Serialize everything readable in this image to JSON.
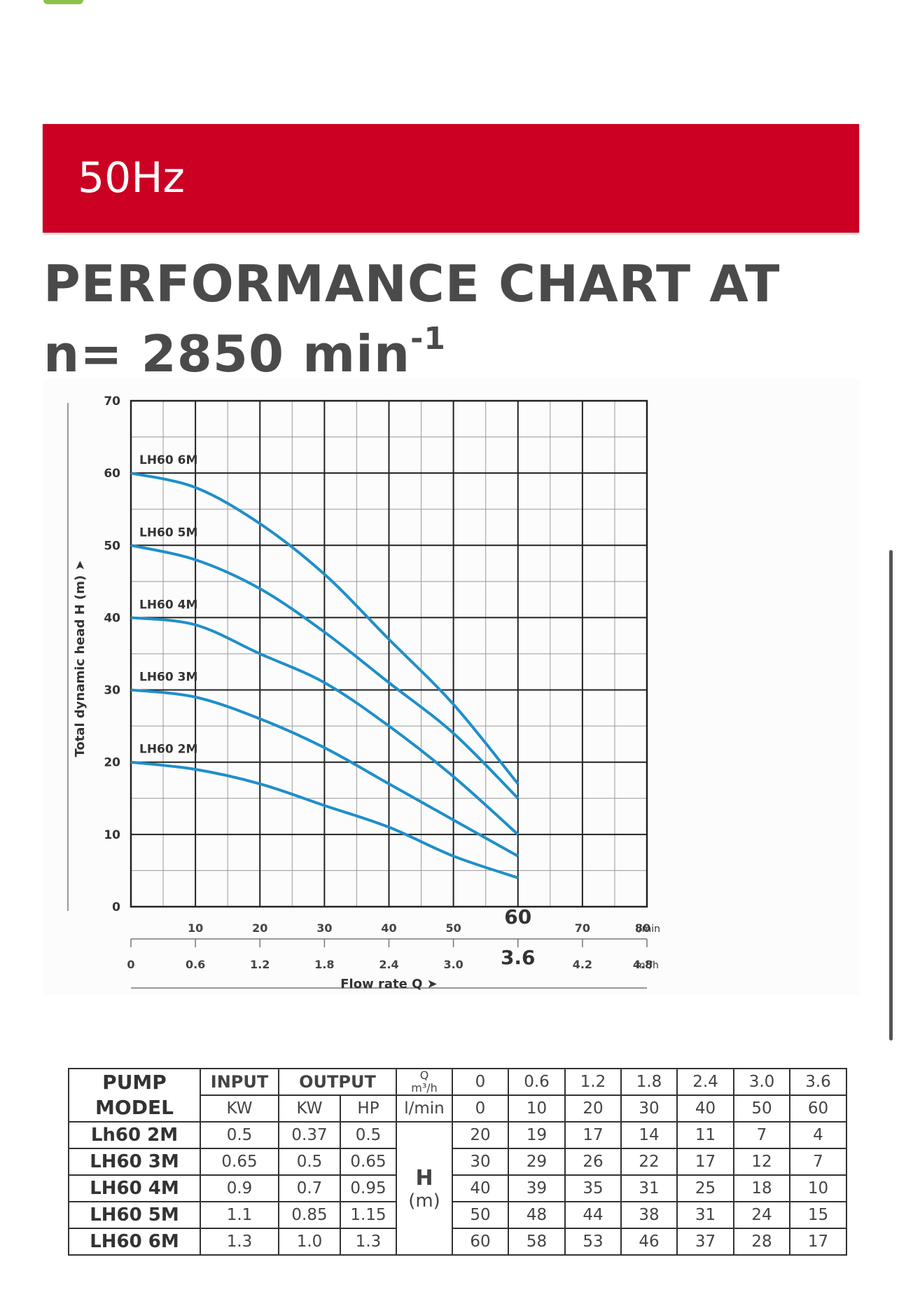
{
  "banner": {
    "text": "50Hz"
  },
  "heading": {
    "line1": "PERFORMANCE CHART AT",
    "line2": "n= 2850 min",
    "line2_sup": "-1"
  },
  "chart_data": {
    "type": "line",
    "ylabel": "Total dynamic head H (m)",
    "xlabel": "Flow rate Q",
    "ylim": [
      0,
      70
    ],
    "y_ticks": [
      0,
      10,
      20,
      30,
      40,
      50,
      60,
      70
    ],
    "xlim_lmin": [
      0,
      80
    ],
    "x_ticks_lmin": [
      10,
      20,
      30,
      40,
      50,
      60,
      70,
      80
    ],
    "x_ticks_lmin_labels": [
      "10",
      "20",
      "30",
      "40",
      "50",
      "60",
      "70",
      "80"
    ],
    "x_unit_lmin": "l/min",
    "x_ticks_m3h": [
      0,
      10,
      20,
      30,
      40,
      50,
      60,
      70,
      80
    ],
    "x_ticks_m3h_labels": [
      "0",
      "0.6",
      "1.2",
      "1.8",
      "2.4",
      "3.0",
      "3.6",
      "4.2",
      "4.8"
    ],
    "x_unit_m3h": "m³/h",
    "grid": true,
    "line_color": "#1f8fc9",
    "x": [
      0,
      10,
      20,
      30,
      40,
      50,
      60
    ],
    "series": [
      {
        "name": "LH60 6M",
        "values": [
          60,
          58,
          53,
          46,
          37,
          28,
          17
        ]
      },
      {
        "name": "LH60 5M",
        "values": [
          50,
          48,
          44,
          38,
          31,
          24,
          15
        ]
      },
      {
        "name": "LH60 4M",
        "values": [
          40,
          39,
          35,
          31,
          25,
          18,
          10
        ]
      },
      {
        "name": "LH60 3M",
        "values": [
          30,
          29,
          26,
          22,
          17,
          12,
          7
        ]
      },
      {
        "name": "LH60 2M",
        "values": [
          20,
          19,
          17,
          14,
          11,
          7,
          4
        ]
      }
    ]
  },
  "table": {
    "pump_model": "PUMP MODEL",
    "input": "INPUT",
    "output": "OUTPUT",
    "q_label": "Q",
    "m3h": "m³/h",
    "kw": "KW",
    "hp": "HP",
    "lmin": "l/min",
    "h_label": "H",
    "h_unit": "(m)",
    "q_m3h": [
      "0",
      "0.6",
      "1.2",
      "1.8",
      "2.4",
      "3.0",
      "3.6"
    ],
    "q_lmin": [
      "0",
      "10",
      "20",
      "30",
      "40",
      "50",
      "60"
    ],
    "rows": [
      {
        "model": "Lh60 2M",
        "kw_in": "0.5",
        "kw_out": "0.37",
        "hp": "0.5",
        "h": [
          "20",
          "19",
          "17",
          "14",
          "11",
          "7",
          "4"
        ]
      },
      {
        "model": "LH60 3M",
        "kw_in": "0.65",
        "kw_out": "0.5",
        "hp": "0.65",
        "h": [
          "30",
          "29",
          "26",
          "22",
          "17",
          "12",
          "7"
        ]
      },
      {
        "model": "LH60 4M",
        "kw_in": "0.9",
        "kw_out": "0.7",
        "hp": "0.95",
        "h": [
          "40",
          "39",
          "35",
          "31",
          "25",
          "18",
          "10"
        ]
      },
      {
        "model": "LH60 5M",
        "kw_in": "1.1",
        "kw_out": "0.85",
        "hp": "1.15",
        "h": [
          "50",
          "48",
          "44",
          "38",
          "31",
          "24",
          "15"
        ]
      },
      {
        "model": "LH60 6M",
        "kw_in": "1.3",
        "kw_out": "1.0",
        "hp": "1.3",
        "h": [
          "60",
          "58",
          "53",
          "46",
          "37",
          "28",
          "17"
        ]
      }
    ]
  }
}
